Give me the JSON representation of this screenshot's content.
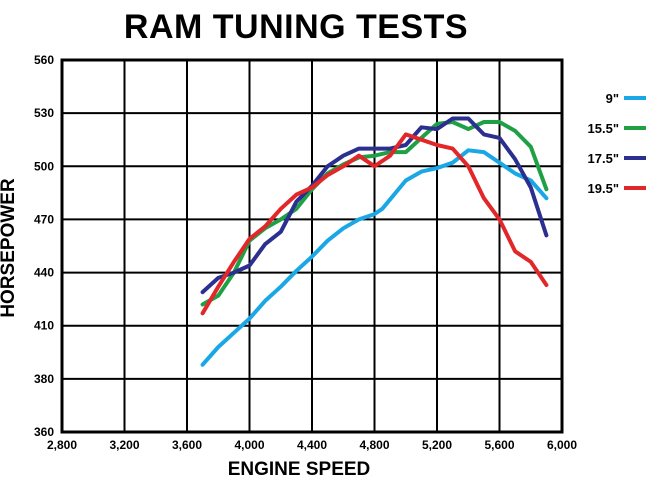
{
  "chart_data": {
    "type": "line",
    "title": "RAM TUNING TESTS",
    "xlabel": "ENGINE SPEED",
    "ylabel": "HORSEPOWER",
    "xlim": [
      2800,
      6000
    ],
    "ylim": [
      360,
      560
    ],
    "x_ticks": [
      2800,
      3200,
      3600,
      4000,
      4400,
      4800,
      5200,
      5600,
      6000
    ],
    "x_tick_labels": [
      "2,800",
      "3,200",
      "3,600",
      "4,000",
      "4,400",
      "4,800",
      "5,200",
      "5,600",
      "6,000"
    ],
    "y_ticks": [
      360,
      380,
      410,
      440,
      470,
      500,
      530,
      560
    ],
    "y_tick_labels": [
      "360",
      "380",
      "410",
      "440",
      "470",
      "500",
      "530",
      "560"
    ],
    "grid": true,
    "legend_position": "right",
    "series": [
      {
        "name": "9\"",
        "color": "#1aa7e6",
        "x": [
          3700,
          3800,
          3900,
          4000,
          4100,
          4200,
          4300,
          4400,
          4500,
          4600,
          4700,
          4800,
          4850,
          5000,
          5100,
          5200,
          5300,
          5400,
          5500,
          5600,
          5700,
          5800,
          5900
        ],
        "y": [
          388,
          398,
          406,
          414,
          424,
          432,
          441,
          449,
          458,
          465,
          470,
          473,
          476,
          492,
          497,
          499,
          502,
          509,
          508,
          502,
          496,
          492,
          482
        ]
      },
      {
        "name": "15.5\"",
        "color": "#1fa045",
        "x": [
          3700,
          3800,
          3900,
          4000,
          4100,
          4200,
          4300,
          4400,
          4500,
          4600,
          4700,
          4800,
          4900,
          5000,
          5100,
          5200,
          5300,
          5400,
          5500,
          5600,
          5700,
          5800,
          5900
        ],
        "y": [
          422,
          427,
          440,
          458,
          465,
          470,
          476,
          487,
          496,
          501,
          505,
          506,
          508,
          508,
          516,
          524,
          525,
          521,
          525,
          525,
          520,
          511,
          487
        ]
      },
      {
        "name": "17.5\"",
        "color": "#2b2f8f",
        "x": [
          3700,
          3800,
          3900,
          4000,
          4100,
          4200,
          4300,
          4400,
          4500,
          4600,
          4700,
          4800,
          4900,
          5000,
          5100,
          5200,
          5300,
          5400,
          5500,
          5600,
          5700,
          5800,
          5900
        ],
        "y": [
          429,
          437,
          440,
          444,
          456,
          463,
          480,
          489,
          500,
          506,
          510,
          510,
          510,
          512,
          522,
          521,
          527,
          527,
          518,
          516,
          504,
          488,
          461
        ]
      },
      {
        "name": "19.5\"",
        "color": "#e2272a",
        "x": [
          3700,
          3800,
          3900,
          4000,
          4100,
          4200,
          4300,
          4400,
          4500,
          4600,
          4700,
          4800,
          4900,
          5000,
          5100,
          5200,
          5300,
          5400,
          5500,
          5600,
          5700,
          5800,
          5900
        ],
        "y": [
          417,
          432,
          446,
          459,
          466,
          476,
          484,
          488,
          495,
          500,
          506,
          500,
          506,
          518,
          515,
          512,
          510,
          500,
          482,
          470,
          452,
          446,
          433
        ]
      }
    ]
  }
}
